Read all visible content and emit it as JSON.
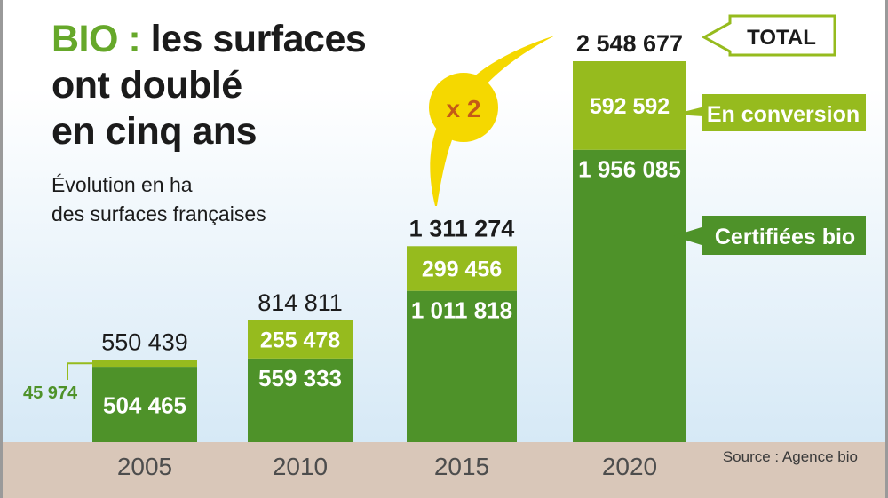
{
  "title": {
    "accent": "BIO :",
    "line1": "les surfaces",
    "line2": "ont doublé",
    "line3": "en cinq ans"
  },
  "subtitle": {
    "line1": "Évolution en ha",
    "line2": "des surfaces françaises"
  },
  "source": "Source : Agence bio",
  "colors": {
    "certified": "#4e9229",
    "conversion": "#96bb1e",
    "bubble": "#f5d800",
    "bubble_text": "#c45a17",
    "ground": "#d9c7b9",
    "sky_top": "#ffffff",
    "sky_bottom": "#d6e9f6"
  },
  "chart_data": {
    "type": "bar",
    "stacked": true,
    "categories": [
      "2005",
      "2010",
      "2015",
      "2020"
    ],
    "series": [
      {
        "name": "Certifiées bio",
        "values": [
          504465,
          559333,
          1011818,
          1956085
        ],
        "labels": [
          "504 465",
          "559 333",
          "1 011 818",
          "1 956 085"
        ]
      },
      {
        "name": "En conversion",
        "values": [
          45974,
          255478,
          299456,
          592592
        ],
        "labels": [
          "45 974",
          "255 478",
          "299 456",
          "592 592"
        ]
      }
    ],
    "totals": [
      550439,
      814811,
      1311274,
      2548677
    ],
    "total_labels": [
      "550 439",
      "814 811",
      "1 311 274",
      "2 548 677"
    ],
    "total_callout": "TOTAL",
    "multiplier": "x 2",
    "ylim": [
      0,
      2548677
    ],
    "grid": false
  }
}
